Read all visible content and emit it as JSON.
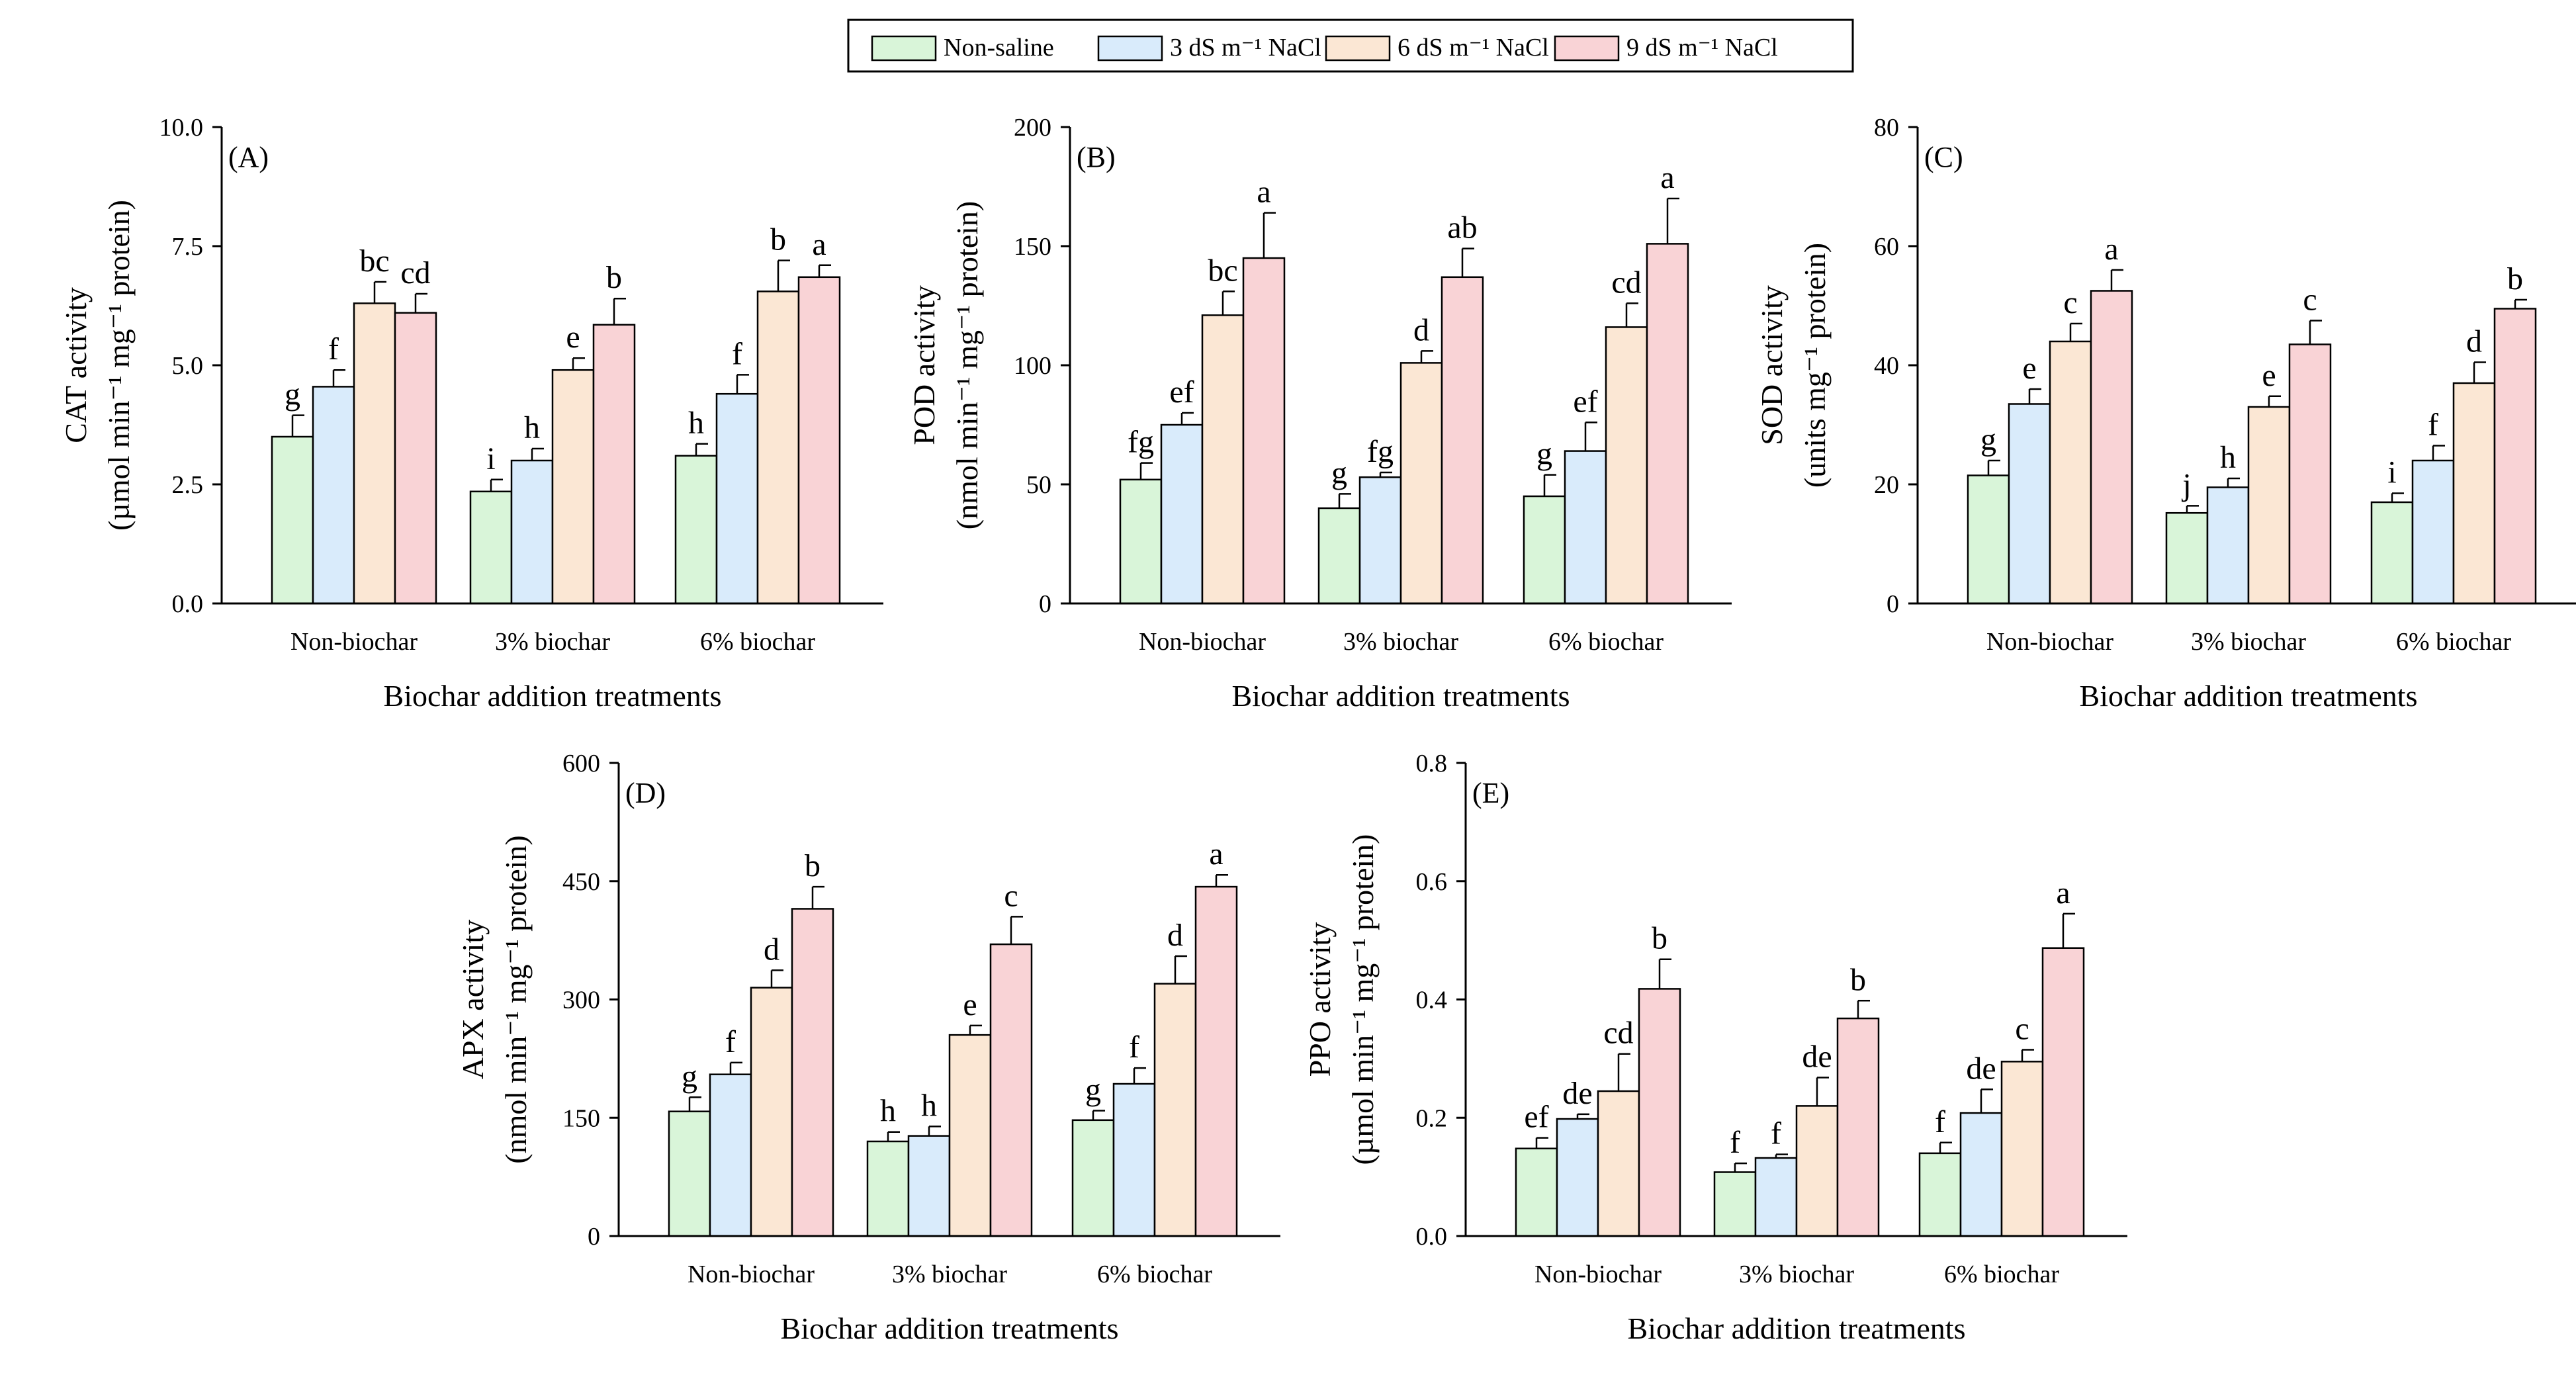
{
  "legend": {
    "entries": [
      {
        "label": "Non-saline",
        "color": "#d9f5d9"
      },
      {
        "label": "3 dS m⁻¹ NaCl",
        "color": "#d9ebfb"
      },
      {
        "label": "6 dS m⁻¹ NaCl",
        "color": "#fbe7d4"
      },
      {
        "label": "9 dS m⁻¹ NaCl",
        "color": "#f9d3d6"
      }
    ]
  },
  "chart_data": [
    {
      "type": "bar",
      "panel_label": "(A)",
      "ylabel_line1": "CAT activity",
      "ylabel_line2": "(µmol min⁻¹ mg⁻¹ protein)",
      "xlabel": "Biochar addition treatments",
      "categories": [
        "Non-biochar",
        "3% biochar",
        "6% biochar"
      ],
      "ylim": [
        0,
        10
      ],
      "yticks": [
        0,
        2.5,
        5,
        7.5,
        10
      ],
      "ytick_labels": [
        "0.0",
        "2.5",
        "5.0",
        "7.5",
        "10.0"
      ],
      "series": [
        {
          "name": "Non-saline",
          "values": [
            3.5,
            2.35,
            3.1
          ],
          "errors": [
            0.45,
            0.25,
            0.25
          ],
          "letters": [
            "g",
            "i",
            "h"
          ]
        },
        {
          "name": "3 dS m⁻¹ NaCl",
          "values": [
            4.55,
            3.0,
            4.4
          ],
          "errors": [
            0.35,
            0.25,
            0.4
          ],
          "letters": [
            "f",
            "h",
            "f"
          ]
        },
        {
          "name": "6 dS m⁻¹ NaCl",
          "values": [
            6.3,
            4.9,
            6.55
          ],
          "errors": [
            0.45,
            0.25,
            0.65
          ],
          "letters": [
            "bc",
            "e",
            "b"
          ]
        },
        {
          "name": "9 dS m⁻¹ NaCl",
          "values": [
            6.1,
            5.85,
            6.85
          ],
          "errors": [
            0.4,
            0.55,
            0.25
          ],
          "letters": [
            "cd",
            "b",
            "a"
          ]
        }
      ]
    },
    {
      "type": "bar",
      "panel_label": "(B)",
      "ylabel_line1": "POD activity",
      "ylabel_line2": "(nmol min⁻¹ mg⁻¹ protein)",
      "xlabel": "Biochar addition treatments",
      "categories": [
        "Non-biochar",
        "3% biochar",
        "6% biochar"
      ],
      "ylim": [
        0,
        200
      ],
      "yticks": [
        0,
        50,
        100,
        150,
        200
      ],
      "ytick_labels": [
        "0",
        "50",
        "100",
        "150",
        "200"
      ],
      "series": [
        {
          "name": "Non-saline",
          "values": [
            52,
            40,
            45
          ],
          "errors": [
            7,
            6,
            9
          ],
          "letters": [
            "fg",
            "g",
            "g"
          ]
        },
        {
          "name": "3 dS m⁻¹ NaCl",
          "values": [
            75,
            53,
            64
          ],
          "errors": [
            5,
            2,
            12
          ],
          "letters": [
            "ef",
            "fg",
            "ef"
          ]
        },
        {
          "name": "6 dS m⁻¹ NaCl",
          "values": [
            121,
            101,
            116
          ],
          "errors": [
            10,
            5,
            10
          ],
          "letters": [
            "bc",
            "d",
            "cd"
          ]
        },
        {
          "name": "9 dS m⁻¹ NaCl",
          "values": [
            145,
            137,
            151
          ],
          "errors": [
            19,
            12,
            19
          ],
          "letters": [
            "a",
            "ab",
            "a"
          ]
        }
      ]
    },
    {
      "type": "bar",
      "panel_label": "(C)",
      "ylabel_line1": "SOD activity",
      "ylabel_line2": "(units mg⁻¹ protein)",
      "xlabel": "Biochar addition treatments",
      "categories": [
        "Non-biochar",
        "3% biochar",
        "6% biochar"
      ],
      "ylim": [
        0,
        80
      ],
      "yticks": [
        0,
        20,
        40,
        60,
        80
      ],
      "ytick_labels": [
        "0",
        "20",
        "40",
        "60",
        "80"
      ],
      "series": [
        {
          "name": "Non-saline",
          "values": [
            21.5,
            15.2,
            17.0
          ],
          "errors": [
            2.5,
            1.2,
            1.5
          ],
          "letters": [
            "g",
            "j",
            "i"
          ]
        },
        {
          "name": "3 dS m⁻¹ NaCl",
          "values": [
            33.5,
            19.5,
            24.0
          ],
          "errors": [
            2.5,
            1.5,
            2.5
          ],
          "letters": [
            "e",
            "h",
            "f"
          ]
        },
        {
          "name": "6 dS m⁻¹ NaCl",
          "values": [
            44.0,
            33.0,
            37.0
          ],
          "errors": [
            3.0,
            1.8,
            3.5
          ],
          "letters": [
            "c",
            "e",
            "d"
          ]
        },
        {
          "name": "9 dS m⁻¹ NaCl",
          "values": [
            52.5,
            43.5,
            49.5
          ],
          "errors": [
            3.5,
            4.0,
            1.5
          ],
          "letters": [
            "a",
            "c",
            "b"
          ]
        }
      ]
    },
    {
      "type": "bar",
      "panel_label": "(D)",
      "ylabel_line1": "APX activity",
      "ylabel_line2": "(nmol min⁻¹ mg⁻¹ protein)",
      "xlabel": "Biochar addition treatments",
      "categories": [
        "Non-biochar",
        "3% biochar",
        "6% biochar"
      ],
      "ylim": [
        0,
        600
      ],
      "yticks": [
        0,
        150,
        300,
        450,
        600
      ],
      "ytick_labels": [
        "0",
        "150",
        "300",
        "450",
        "600"
      ],
      "series": [
        {
          "name": "Non-saline",
          "values": [
            158,
            120,
            147
          ],
          "errors": [
            18,
            12,
            12
          ],
          "letters": [
            "g",
            "h",
            "g"
          ]
        },
        {
          "name": "3 dS m⁻¹ NaCl",
          "values": [
            205,
            127,
            193
          ],
          "errors": [
            15,
            12,
            20
          ],
          "letters": [
            "f",
            "h",
            "f"
          ]
        },
        {
          "name": "6 dS m⁻¹ NaCl",
          "values": [
            315,
            255,
            320
          ],
          "errors": [
            22,
            12,
            35
          ],
          "letters": [
            "d",
            "e",
            "d"
          ]
        },
        {
          "name": "9 dS m⁻¹ NaCl",
          "values": [
            415,
            370,
            443
          ],
          "errors": [
            28,
            35,
            15
          ],
          "letters": [
            "b",
            "c",
            "a"
          ]
        }
      ]
    },
    {
      "type": "bar",
      "panel_label": "(E)",
      "ylabel_line1": "PPO activity",
      "ylabel_line2": "(µmol min⁻¹ mg⁻¹ protein)",
      "xlabel": "Biochar addition treatments",
      "categories": [
        "Non-biochar",
        "3% biochar",
        "6% biochar"
      ],
      "ylim": [
        0,
        0.8
      ],
      "yticks": [
        0,
        0.2,
        0.4,
        0.6,
        0.8
      ],
      "ytick_labels": [
        "0.0",
        "0.2",
        "0.4",
        "0.6",
        "0.8"
      ],
      "series": [
        {
          "name": "Non-saline",
          "values": [
            0.148,
            0.108,
            0.14
          ],
          "errors": [
            0.018,
            0.015,
            0.018
          ],
          "letters": [
            "ef",
            "f",
            "f"
          ]
        },
        {
          "name": "3 dS m⁻¹ NaCl",
          "values": [
            0.198,
            0.132,
            0.208
          ],
          "errors": [
            0.008,
            0.006,
            0.04
          ],
          "letters": [
            "de",
            "f",
            "de"
          ]
        },
        {
          "name": "6 dS m⁻¹ NaCl",
          "values": [
            0.245,
            0.22,
            0.295
          ],
          "errors": [
            0.063,
            0.048,
            0.02
          ],
          "letters": [
            "cd",
            "de",
            "c"
          ]
        },
        {
          "name": "9 dS m⁻¹ NaCl",
          "values": [
            0.418,
            0.368,
            0.487
          ],
          "errors": [
            0.05,
            0.03,
            0.058
          ],
          "letters": [
            "b",
            "b",
            "a"
          ]
        }
      ]
    }
  ]
}
